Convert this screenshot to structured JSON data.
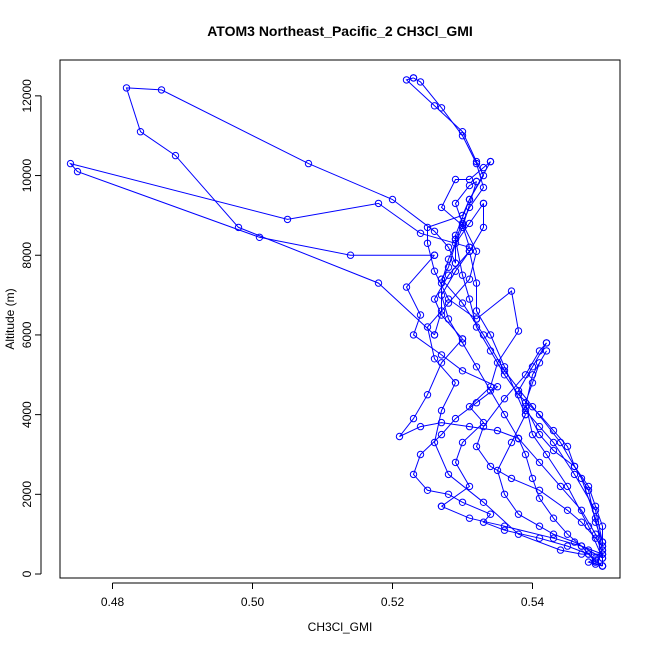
{
  "chart_data": {
    "type": "line",
    "title": "ATOM3 Northeast_Pacific_2 CH3Cl_GMI",
    "xlabel": "CH3Cl_GMI",
    "ylabel": "Altitude (m)",
    "xlim": [
      0.4725,
      0.5525
    ],
    "ylim": [
      -100,
      12900
    ],
    "xticks": [
      0.48,
      0.5,
      0.52,
      0.54
    ],
    "xtick_labels": [
      "0.48",
      "0.50",
      "0.52",
      "0.54"
    ],
    "yticks": [
      0,
      2000,
      4000,
      6000,
      8000,
      10000,
      12000
    ],
    "ytick_labels": [
      "0",
      "2000",
      "4000",
      "6000",
      "8000",
      "10000",
      "12000"
    ],
    "grid": false,
    "legend": "none",
    "colors": {
      "series": "#0000ff"
    },
    "series": [
      {
        "x": [
          0.55,
          0.549,
          0.548,
          0.545,
          0.541,
          0.536,
          0.533,
          0.534,
          0.53,
          0.528,
          0.525,
          0.523,
          0.524,
          0.527,
          0.529,
          0.532,
          0.535,
          0.53,
          0.527,
          0.523,
          0.524,
          0.522,
          0.526
        ],
        "y": [
          200,
          300,
          500,
          700,
          900,
          1100,
          1300,
          1500,
          1800,
          2000,
          2100,
          2500,
          3000,
          3500,
          3900,
          4300,
          4700,
          5100,
          5500,
          6000,
          6500,
          7200,
          8000
        ]
      },
      {
        "x": [
          0.526,
          0.514,
          0.501,
          0.475,
          0.474,
          0.505,
          0.518,
          0.524,
          0.531
        ],
        "y": [
          8000,
          8000,
          8450,
          10100,
          10300,
          8900,
          9300,
          8550,
          8200
        ]
      },
      {
        "x": [
          0.531,
          0.53,
          0.527,
          0.529,
          0.531,
          0.533,
          0.534
        ],
        "y": [
          8200,
          8750,
          9200,
          9900,
          9900,
          10200,
          10350
        ]
      },
      {
        "x": [
          0.534,
          0.531,
          0.53,
          0.525,
          0.525,
          0.526,
          0.528,
          0.532
        ],
        "y": [
          10350,
          9400,
          9000,
          8700,
          8300,
          7600,
          6900,
          6400
        ]
      },
      {
        "x": [
          0.532,
          0.537,
          0.538,
          0.535,
          0.534,
          0.531,
          0.533,
          0.53,
          0.529,
          0.531,
          0.527
        ],
        "y": [
          6400,
          7100,
          6100,
          5300,
          4700,
          4200,
          3800,
          3300,
          2800,
          2200,
          1700
        ]
      },
      {
        "x": [
          0.527,
          0.531,
          0.536,
          0.543,
          0.547,
          0.55
        ],
        "y": [
          1700,
          1400,
          1200,
          900,
          700,
          500
        ]
      },
      {
        "x": [
          0.55,
          0.547,
          0.544,
          0.538,
          0.533,
          0.528,
          0.526,
          0.527,
          0.529
        ],
        "y": [
          500,
          500,
          600,
          1000,
          1800,
          2500,
          3300,
          4100,
          4800
        ]
      },
      {
        "x": [
          0.529,
          0.526,
          0.525,
          0.528,
          0.531,
          0.532,
          0.53,
          0.529,
          0.531,
          0.532
        ],
        "y": [
          4800,
          5400,
          6200,
          6800,
          7400,
          8100,
          8800,
          9300,
          9750,
          9850
        ]
      },
      {
        "x": [
          0.532,
          0.53,
          0.528,
          0.527,
          0.527,
          0.526
        ],
        "y": [
          9850,
          8700,
          7900,
          7300,
          6600,
          6000
        ]
      },
      {
        "x": [
          0.526,
          0.518,
          0.498,
          0.489,
          0.484,
          0.482,
          0.487,
          0.508,
          0.52,
          0.526,
          0.528,
          0.529
        ],
        "y": [
          6000,
          7300,
          8700,
          10500,
          11100,
          12200,
          12150,
          10300,
          9400,
          8600,
          8200,
          7800
        ]
      },
      {
        "x": [
          0.529,
          0.529,
          0.531,
          0.533,
          0.532,
          0.53,
          0.526,
          0.522,
          0.523
        ],
        "y": [
          7800,
          8500,
          9400,
          10000,
          10350,
          11100,
          11750,
          12400,
          12450
        ]
      },
      {
        "x": [
          0.523,
          0.524,
          0.527,
          0.53,
          0.532,
          0.533,
          0.531,
          0.529
        ],
        "y": [
          12450,
          12350,
          11700,
          11000,
          10300,
          9700,
          9200,
          8400
        ]
      },
      {
        "x": [
          0.529,
          0.53,
          0.531,
          0.532,
          0.534,
          0.536,
          0.538,
          0.541,
          0.543,
          0.545,
          0.546,
          0.548,
          0.549,
          0.55,
          0.55
        ],
        "y": [
          8400,
          7500,
          6900,
          6200,
          5600,
          5000,
          4500,
          4000,
          3600,
          3200,
          2700,
          2200,
          1700,
          1200,
          700
        ]
      },
      {
        "x": [
          0.55,
          0.549,
          0.547,
          0.545,
          0.541,
          0.537,
          0.534,
          0.532,
          0.533,
          0.536,
          0.539,
          0.541,
          0.542
        ],
        "y": [
          700,
          900,
          1300,
          1600,
          2100,
          2400,
          2700,
          3200,
          3700,
          4400,
          5000,
          5600,
          5800
        ]
      },
      {
        "x": [
          0.542,
          0.54,
          0.538,
          0.539,
          0.541,
          0.543,
          0.546,
          0.549,
          0.55
        ],
        "y": [
          5800,
          5200,
          4600,
          4100,
          3700,
          3300,
          2500,
          1600,
          800
        ]
      },
      {
        "x": [
          0.55,
          0.549,
          0.548,
          0.546,
          0.543,
          0.541,
          0.539,
          0.54,
          0.542,
          0.541,
          0.54,
          0.539,
          0.54,
          0.542,
          0.545,
          0.548,
          0.55
        ],
        "y": [
          800,
          1300,
          2100,
          2700,
          3100,
          3500,
          4200,
          5000,
          5600,
          5300,
          4800,
          4300,
          3500,
          3000,
          2200,
          1200,
          400
        ]
      },
      {
        "x": [
          0.55,
          0.548,
          0.546,
          0.543,
          0.541,
          0.538,
          0.536,
          0.535,
          0.537,
          0.539
        ],
        "y": [
          400,
          600,
          800,
          1000,
          1200,
          1500,
          2000,
          2600,
          3300,
          4000
        ]
      },
      {
        "x": [
          0.539,
          0.536,
          0.534,
          0.532,
          0.532,
          0.531
        ],
        "y": [
          4000,
          5200,
          6000,
          6600,
          7300,
          8100
        ]
      },
      {
        "x": [
          0.531,
          0.529,
          0.527,
          0.528,
          0.53,
          0.532,
          0.534,
          0.536,
          0.538,
          0.541,
          0.544,
          0.547,
          0.549,
          0.55,
          0.55
        ],
        "y": [
          8100,
          7600,
          7000,
          6400,
          5800,
          5200,
          4600,
          4000,
          3400,
          2800,
          2200,
          1600,
          1000,
          500,
          200
        ]
      },
      {
        "x": [
          0.55,
          0.549,
          0.548,
          0.547,
          0.545,
          0.543,
          0.541,
          0.54,
          0.539,
          0.538
        ],
        "y": [
          200,
          350,
          500,
          700,
          1000,
          1400,
          1900,
          2400,
          3000,
          3400
        ]
      },
      {
        "x": [
          0.538,
          0.535,
          0.531,
          0.527,
          0.524,
          0.521,
          0.523,
          0.525,
          0.527,
          0.53
        ],
        "y": [
          3400,
          3600,
          3700,
          3800,
          3700,
          3450,
          3900,
          4500,
          5300,
          5900
        ]
      },
      {
        "x": [
          0.53,
          0.527,
          0.526,
          0.528,
          0.531,
          0.533,
          0.533
        ],
        "y": [
          5900,
          6500,
          6900,
          7500,
          8100,
          8700,
          9300
        ]
      },
      {
        "x": [
          0.533,
          0.531,
          0.529,
          0.528,
          0.527
        ],
        "y": [
          9300,
          8800,
          8300,
          7700,
          7400
        ]
      },
      {
        "x": [
          0.527,
          0.53,
          0.533,
          0.536,
          0.54,
          0.544,
          0.547,
          0.549,
          0.55
        ],
        "y": [
          7400,
          6800,
          6000,
          5100,
          4200,
          3300,
          2400,
          1400,
          600
        ]
      },
      {
        "x": [
          0.55,
          0.549,
          0.548,
          0.549,
          0.55
        ],
        "y": [
          600,
          400,
          300,
          250,
          200
        ]
      }
    ]
  }
}
